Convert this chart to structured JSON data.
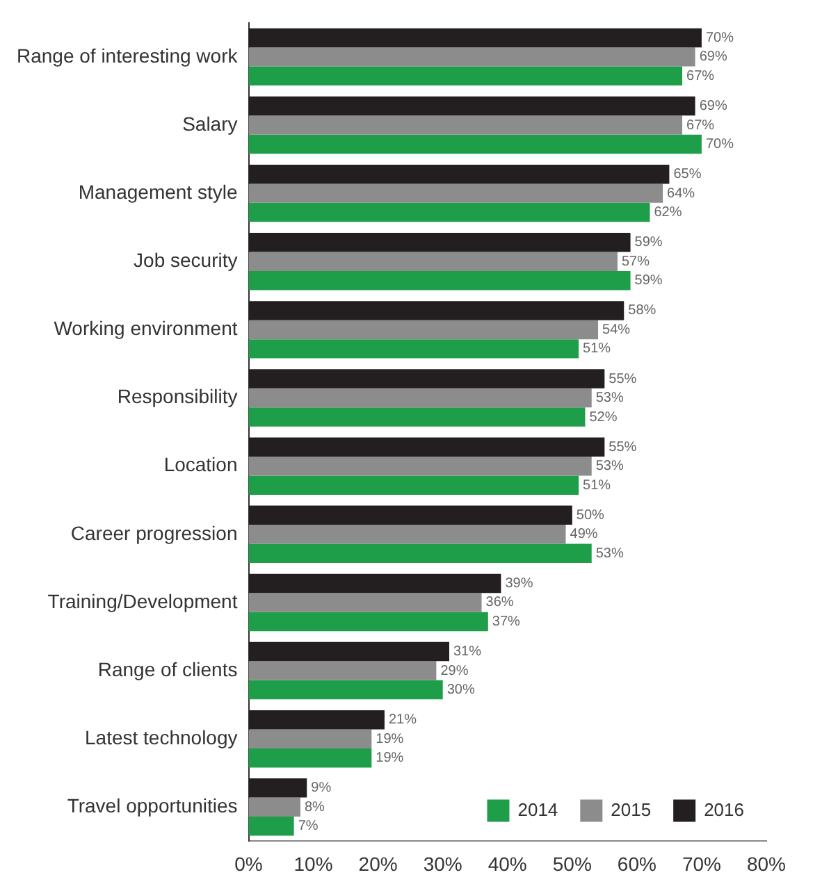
{
  "chart_data": {
    "type": "bar",
    "orientation": "horizontal",
    "categories": [
      "Range of interesting work",
      "Salary",
      "Management style",
      "Job security",
      "Working environment",
      "Responsibility",
      "Location",
      "Career progression",
      "Training/Development",
      "Range of clients",
      "Latest technology",
      "Travel opportunities"
    ],
    "series": [
      {
        "name": "2016",
        "color": "#231f20",
        "values": [
          70,
          69,
          65,
          59,
          58,
          55,
          55,
          50,
          39,
          31,
          21,
          9
        ],
        "value_labels": [
          "70%",
          "69%",
          "65%",
          "59%",
          "58%",
          "55%",
          "55%",
          "50%",
          "39%",
          "31%",
          "21%",
          "9%"
        ]
      },
      {
        "name": "2015",
        "color": "#8c8c8c",
        "values": [
          69,
          67,
          64,
          57,
          54,
          53,
          53,
          49,
          36,
          29,
          19,
          8
        ],
        "value_labels": [
          "69%",
          "67%",
          "64%",
          "57%",
          "54%",
          "53%",
          "53%",
          "49%",
          "36%",
          "29%",
          "19%",
          "8%"
        ]
      },
      {
        "name": "2014",
        "color": "#1f9e4a",
        "values": [
          67,
          70,
          62,
          59,
          51,
          52,
          51,
          53,
          37,
          30,
          19,
          7
        ],
        "value_labels": [
          "67%",
          "70%",
          "62%",
          "59%",
          "51%",
          "52%",
          "51%",
          "53%",
          "37%",
          "30%",
          "19%",
          "7%"
        ]
      }
    ],
    "xlim": [
      0,
      80
    ],
    "xticks": [
      {
        "value": 0,
        "label": "0%"
      },
      {
        "value": 10,
        "label": "10%"
      },
      {
        "value": 20,
        "label": "20%"
      },
      {
        "value": 30,
        "label": "30%"
      },
      {
        "value": 40,
        "label": "40%"
      },
      {
        "value": 50,
        "label": "50%"
      },
      {
        "value": 60,
        "label": "60%"
      },
      {
        "value": 70,
        "label": "70%"
      },
      {
        "value": 80,
        "label": "80%"
      }
    ],
    "grid": false,
    "legend": "bottom right"
  }
}
